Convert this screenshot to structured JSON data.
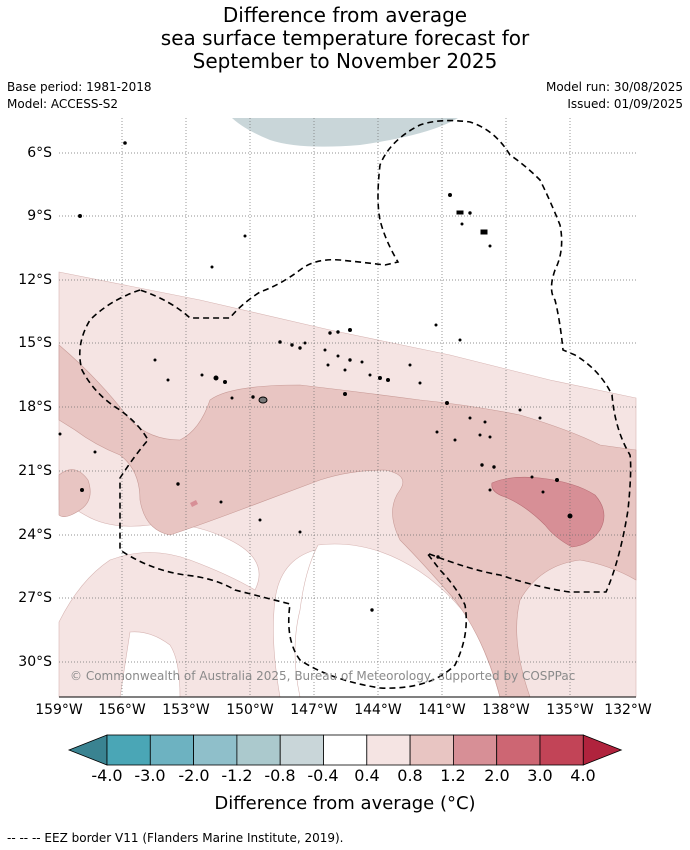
{
  "title": {
    "line1": "Difference from average",
    "line2": "sea surface temperature forecast for",
    "line3": "September to November 2025"
  },
  "meta": {
    "base_period": "Base period: 1981-2018",
    "model": "Model: ACCESS-S2",
    "model_run": "Model run: 30/08/2025",
    "issued": "Issued: 01/09/2025"
  },
  "map": {
    "latitude_labels": [
      "6°S",
      "9°S",
      "12°S",
      "15°S",
      "18°S",
      "21°S",
      "24°S",
      "27°S",
      "30°S"
    ],
    "longitude_labels": [
      "159°W",
      "156°W",
      "153°W",
      "150°W",
      "147°W",
      "144°W",
      "141°W",
      "138°W",
      "135°W",
      "132°W"
    ],
    "copyright": "© Commonwealth of Australia 2025, Bureau of Meteorology, supported by COSPPac"
  },
  "colorbar": {
    "title": "Difference from average (°C)",
    "tick_labels": [
      "-4.0",
      "-3.0",
      "-2.0",
      "-1.2",
      "-0.8",
      "-0.4",
      "0.4",
      "0.8",
      "1.2",
      "2.0",
      "3.0",
      "4.0"
    ],
    "colors": [
      "#3a8391",
      "#4aa6b6",
      "#6db2c1",
      "#8fbfca",
      "#abc9cd",
      "#c9d6d9",
      "#ffffff",
      "#f5e4e3",
      "#e8c5c2",
      "#d78f96",
      "#cd6673",
      "#c24457",
      "#b0233d"
    ]
  },
  "footer": "--  --  -- EEZ border V11 (Flanders Marine Institute, 2019)."
}
